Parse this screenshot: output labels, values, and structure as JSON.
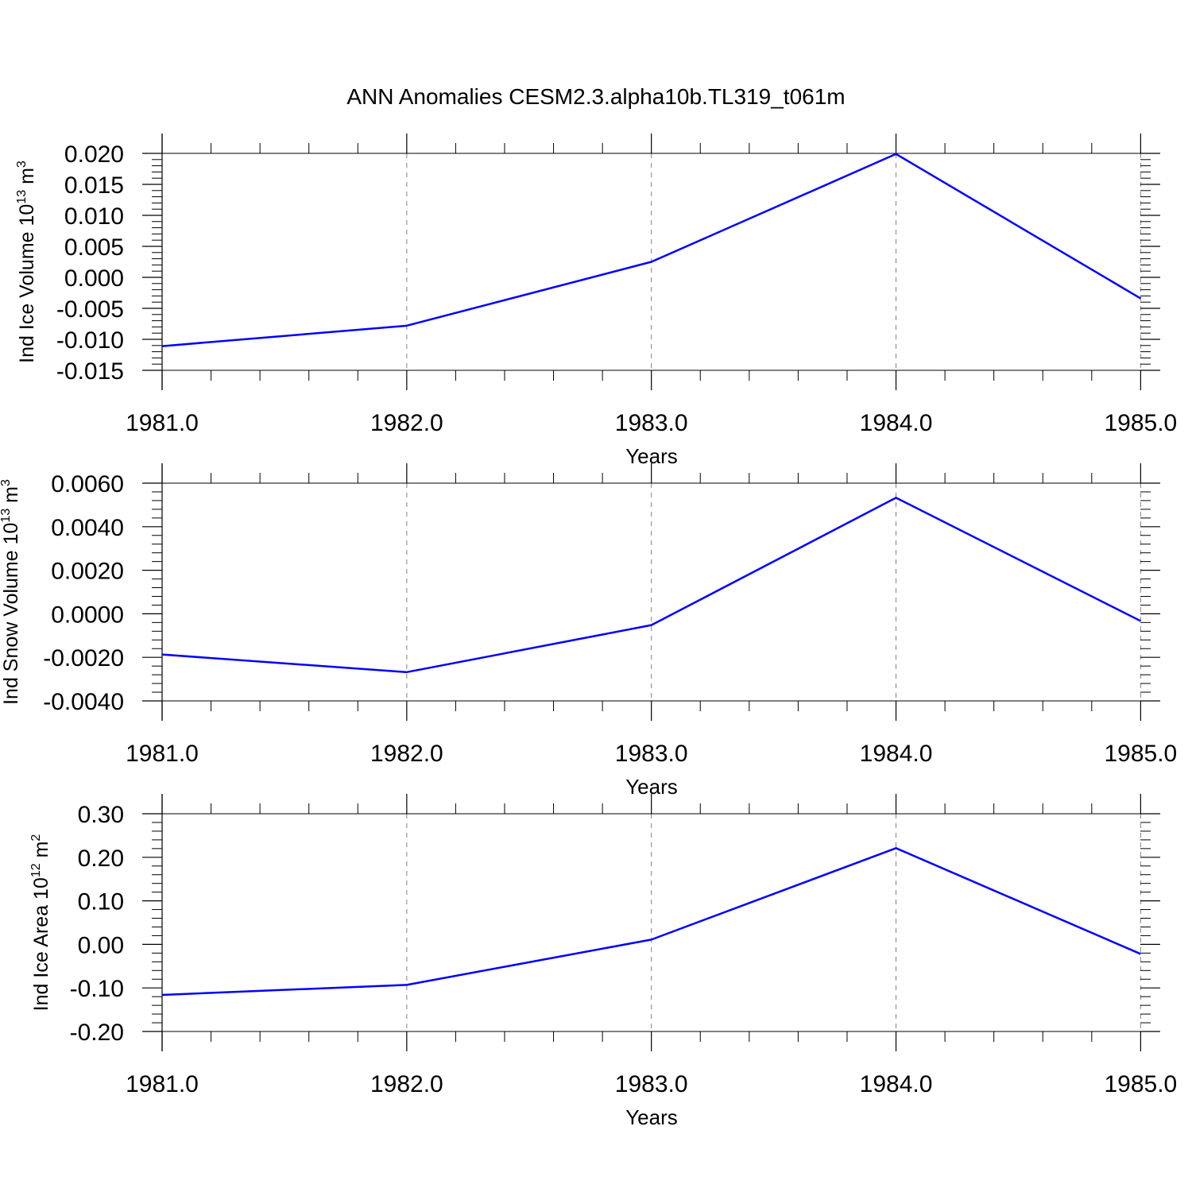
{
  "figure": {
    "title": "ANN Anomalies CESM2.3.alpha10b.TL319_t061m",
    "line_color": "#0000ff",
    "grid_color": "#808080",
    "axis_color": "#000000"
  },
  "chart_data": [
    {
      "type": "line",
      "ylabel": {
        "text": "Ind Ice Volume 10",
        "exp": "13",
        "unit": " m",
        "unit_exp": "3"
      },
      "xlabel": "Years",
      "x": [
        1981,
        1982,
        1983,
        1984,
        1985
      ],
      "series": [
        {
          "values": [
            -0.0111,
            -0.0078,
            0.0025,
            0.0199,
            -0.0034
          ]
        }
      ],
      "xlim": [
        1981,
        1985.08
      ],
      "ylim": [
        -0.015,
        0.02
      ],
      "xticks": [
        "1981.0",
        "1982.0",
        "1983.0",
        "1984.0",
        "1985.0"
      ],
      "yticks": [
        "-0.015",
        "-0.010",
        "-0.005",
        "0.000",
        "0.005",
        "0.010",
        "0.015",
        "0.020"
      ],
      "yticks_values": [
        -0.015,
        -0.01,
        -0.005,
        0.0,
        0.005,
        0.01,
        0.015,
        0.02
      ],
      "grid": "x-dashed"
    },
    {
      "type": "line",
      "ylabel": {
        "text": "Ind Snow Volume 10",
        "exp": "13",
        "unit": " m",
        "unit_exp": "3"
      },
      "xlabel": "Years",
      "x": [
        1981,
        1982,
        1983,
        1984,
        1985
      ],
      "series": [
        {
          "values": [
            -0.00187,
            -0.00268,
            -0.00052,
            0.00533,
            -0.00033
          ]
        }
      ],
      "xlim": [
        1981,
        1985.08
      ],
      "ylim": [
        -0.004,
        0.006
      ],
      "xticks": [
        "1981.0",
        "1982.0",
        "1983.0",
        "1984.0",
        "1985.0"
      ],
      "yticks": [
        "-0.0040",
        "-0.0020",
        "0.0000",
        "0.0020",
        "0.0040",
        "0.0060"
      ],
      "yticks_values": [
        -0.004,
        -0.002,
        0.0,
        0.002,
        0.004,
        0.006
      ],
      "grid": "x-dashed"
    },
    {
      "type": "line",
      "ylabel": {
        "text": "Ind Ice Area 10",
        "exp": "12",
        "unit": " m",
        "unit_exp": "2"
      },
      "xlabel": "Years",
      "x": [
        1981,
        1982,
        1983,
        1984,
        1985
      ],
      "series": [
        {
          "values": [
            -0.116,
            -0.093,
            0.011,
            0.221,
            -0.022
          ]
        }
      ],
      "xlim": [
        1981,
        1985.08
      ],
      "ylim": [
        -0.2,
        0.3
      ],
      "xticks": [
        "1981.0",
        "1982.0",
        "1983.0",
        "1984.0",
        "1985.0"
      ],
      "yticks": [
        "-0.20",
        "-0.10",
        "0.00",
        "0.10",
        "0.20",
        "0.30"
      ],
      "yticks_values": [
        -0.2,
        -0.1,
        0.0,
        0.1,
        0.2,
        0.3
      ],
      "grid": "x-dashed"
    }
  ]
}
